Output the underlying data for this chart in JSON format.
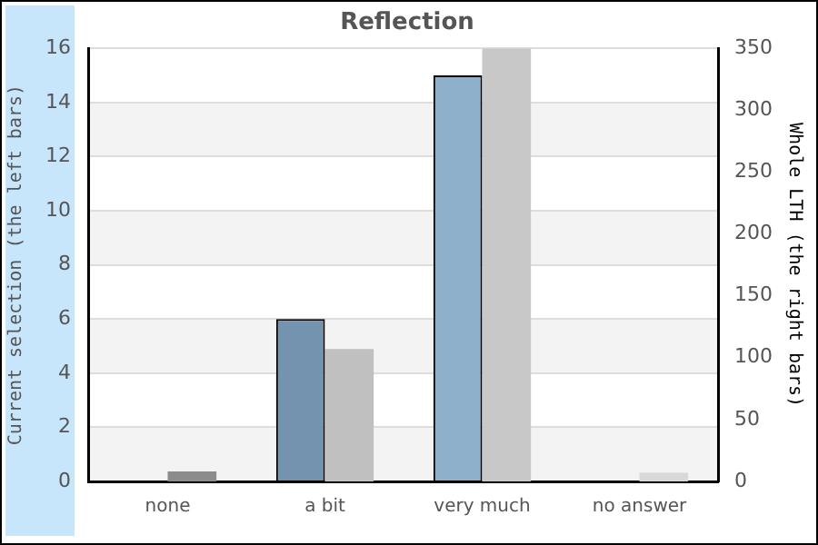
{
  "chart_data": {
    "type": "bar",
    "title": "Reflection",
    "ylabel": "Current selection (the left bars)",
    "y2label": "Whole LTH (the right bars)",
    "categories": [
      "none",
      "a bit",
      "very much",
      "no answer"
    ],
    "series": [
      {
        "colors": [
          "#7393ae",
          "#7393ae",
          "#8fb0cb",
          "#8fb0cb"
        ],
        "values": [
          0,
          6,
          15,
          0
        ]
      },
      {
        "axis": "y2",
        "colors": [
          "#8c8c8c",
          "#c0c0c0",
          "#c8c8c8",
          "#d8d8d8"
        ],
        "values": [
          8,
          107,
          350,
          7
        ]
      }
    ],
    "ylim": [
      0,
      16
    ],
    "yticks": [
      0,
      2,
      4,
      6,
      8,
      10,
      12,
      14,
      16
    ],
    "y2lim": [
      0,
      350
    ],
    "y2ticks": [
      0,
      50,
      100,
      150,
      200,
      250,
      300,
      350
    ],
    "grid": "y",
    "legend": false
  }
}
